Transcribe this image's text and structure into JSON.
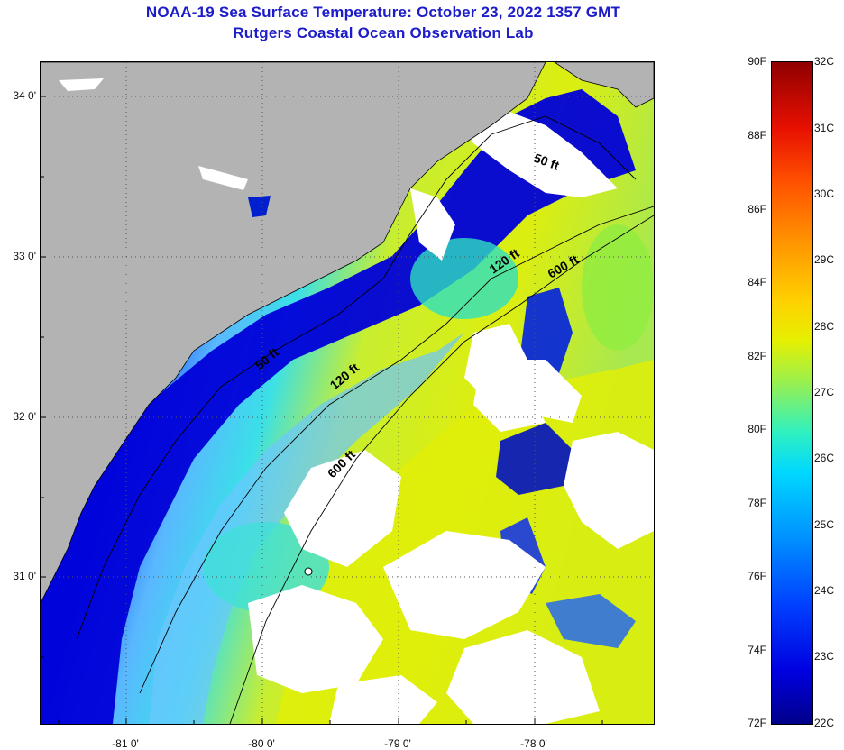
{
  "title_line1": "NOAA-19 Sea Surface Temperature:  October 23, 2022 1357 GMT",
  "title_line2": "Rutgers Coastal Ocean Observation Lab",
  "lat_labels": [
    "34 0'",
    "33 0'",
    "32 0'",
    "31 0'"
  ],
  "lon_labels": [
    "-81 0'",
    "-80 0'",
    "-79 0'",
    "-78 0'"
  ],
  "contour_labels": [
    "50 ft",
    "120 ft",
    "600 ft",
    "50 ft",
    "120 ft",
    "600 ft"
  ],
  "colorbar": {
    "fahrenheit": [
      "90F",
      "88F",
      "86F",
      "84F",
      "82F",
      "80F",
      "78F",
      "76F",
      "74F",
      "72F"
    ],
    "celsius": [
      "32C",
      "31C",
      "30C",
      "29C",
      "28C",
      "27C",
      "26C",
      "25C",
      "24C",
      "23C",
      "22C"
    ],
    "colors": {
      "cold": "#00008a",
      "cool": "#0040ff",
      "mild": "#00d8ff",
      "warm": "#e6f000",
      "hot": "#ff5000",
      "hottest": "#900000"
    }
  },
  "map_colors": {
    "land": "#b3b3b3",
    "cloud": "#ffffff",
    "coast": "#000000"
  }
}
